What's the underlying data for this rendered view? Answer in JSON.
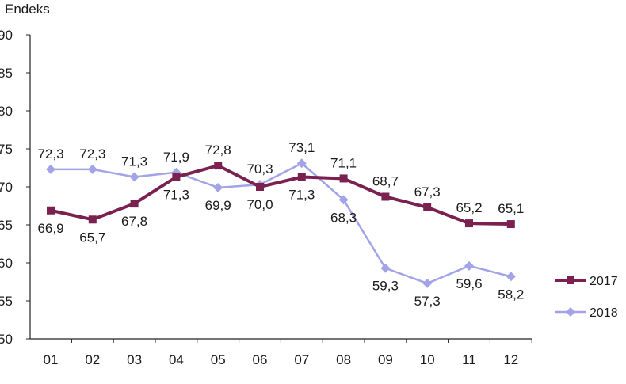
{
  "chart_data": {
    "type": "line",
    "ylabel": "Endeks",
    "categories": [
      "01",
      "02",
      "03",
      "04",
      "05",
      "06",
      "07",
      "08",
      "09",
      "10",
      "11",
      "12"
    ],
    "y_ticks": [
      "90",
      "85",
      "80",
      "75",
      "70",
      "65",
      "60",
      "55",
      "50"
    ],
    "ylim": [
      50,
      90
    ],
    "grid": false,
    "legend_position": "right",
    "series": [
      {
        "name": "2017",
        "color": "#7b2150",
        "marker": "square",
        "values": [
          66.9,
          65.7,
          67.8,
          71.3,
          72.8,
          70.0,
          71.3,
          71.1,
          68.7,
          67.3,
          65.2,
          65.1
        ],
        "labels": [
          "66,9",
          "65,7",
          "67,8",
          "71,3",
          "72,8",
          "70,0",
          "71,3",
          "71,1",
          "68,7",
          "67,3",
          "65,2",
          "65,1"
        ]
      },
      {
        "name": "2018",
        "color": "#a3a3e8",
        "marker": "diamond",
        "values": [
          72.3,
          72.3,
          71.3,
          71.9,
          69.9,
          70.3,
          73.1,
          68.3,
          59.3,
          57.3,
          59.6,
          58.2
        ],
        "labels": [
          "72,3",
          "72,3",
          "71,3",
          "71,9",
          "69,9",
          "70,3",
          "73,1",
          "68,3",
          "59,3",
          "57,3",
          "59,6",
          "58,2"
        ]
      }
    ]
  }
}
